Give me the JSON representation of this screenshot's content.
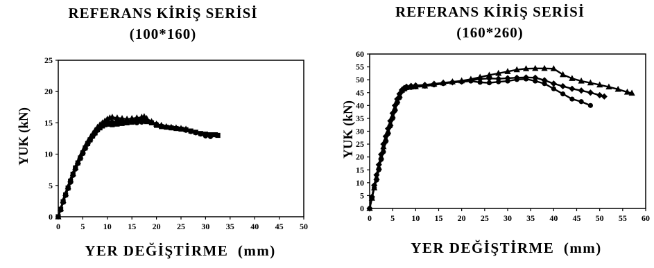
{
  "chart_data": [
    {
      "type": "scatter",
      "title": "REFERANS KİRİŞ SERİSİ",
      "subtitle": "(100*160)",
      "xlabel": "YER DEĞİŞTİRME  (mm)",
      "ylabel": "YUK (kN)",
      "xlim": [
        0,
        50
      ],
      "ylim": [
        0,
        25
      ],
      "xticks": [
        0,
        5,
        10,
        15,
        20,
        25,
        30,
        35,
        40,
        45,
        50
      ],
      "yticks": [
        0,
        5,
        10,
        15,
        20,
        25
      ],
      "grid": false,
      "legend": "none",
      "series": [
        {
          "marker": "square",
          "color": "#000000",
          "x": [
            0,
            0.5,
            1,
            1.5,
            2,
            2.5,
            3,
            3.5,
            4,
            4.5,
            5,
            5.5,
            6,
            6.5,
            7,
            7.5,
            8,
            8.5,
            9,
            9.5,
            10,
            10.5,
            11,
            12,
            13,
            14,
            15,
            16,
            17,
            18,
            19,
            20,
            21,
            22,
            23,
            24,
            25,
            26,
            27,
            28,
            29,
            30,
            31,
            32,
            32.5
          ],
          "y": [
            0,
            1.2,
            2.4,
            3.5,
            4.6,
            5.7,
            6.8,
            7.8,
            8.6,
            9.4,
            10.2,
            11,
            11.7,
            12.3,
            12.9,
            13.4,
            13.9,
            14.2,
            14.5,
            14.7,
            14.8,
            14.8,
            14.7,
            14.8,
            14.9,
            15,
            15.1,
            15.2,
            15.3,
            15.2,
            15,
            14.6,
            14.4,
            14.3,
            14.2,
            14.1,
            14,
            13.9,
            13.7,
            13.5,
            13.3,
            13.2,
            13.1,
            13.1,
            13
          ]
        },
        {
          "marker": "triangle",
          "color": "#000000",
          "x": [
            0,
            0.5,
            1,
            1.5,
            2,
            2.5,
            3,
            3.5,
            4,
            4.5,
            5,
            5.5,
            6,
            6.5,
            7,
            7.5,
            8,
            8.5,
            9,
            9.5,
            10,
            10.5,
            11,
            12,
            13,
            14,
            15,
            16,
            17,
            17.5,
            18,
            19,
            20,
            21,
            22,
            23,
            24,
            25,
            26
          ],
          "y": [
            0,
            1.3,
            2.6,
            3.7,
            4.8,
            5.9,
            6.9,
            7.9,
            8.8,
            9.7,
            10.5,
            11.3,
            12,
            12.6,
            13.2,
            13.8,
            14.3,
            14.7,
            15,
            15.3,
            15.6,
            15.8,
            15.9,
            15.8,
            15.7,
            15.6,
            15.7,
            15.8,
            15.9,
            16,
            15.7,
            15.2,
            14.8,
            14.6,
            14.4,
            14.3,
            14.2,
            14.1,
            14
          ]
        },
        {
          "marker": "circle",
          "color": "#000000",
          "x": [
            0,
            0.5,
            1,
            1.5,
            2,
            2.5,
            3,
            3.5,
            4,
            4.5,
            5,
            5.5,
            6,
            6.5,
            7,
            7.5,
            8,
            8.5,
            9,
            9.5,
            10,
            11,
            12,
            13,
            14,
            15,
            16,
            17,
            18,
            19,
            20,
            21,
            22,
            23,
            24,
            25,
            26,
            27,
            28,
            29,
            30,
            31
          ],
          "y": [
            0,
            1.1,
            2.3,
            3.4,
            4.5,
            5.5,
            6.6,
            7.6,
            8.5,
            9.3,
            10.1,
            10.9,
            11.6,
            12.2,
            12.8,
            13.3,
            13.8,
            14.2,
            14.5,
            14.8,
            15,
            15.1,
            15.2,
            15.3,
            15.2,
            15.1,
            15,
            15.1,
            15.3,
            15.1,
            14.8,
            14.5,
            14.3,
            14.2,
            14.1,
            14,
            13.8,
            13.6,
            13.4,
            13.2,
            12.9,
            12.8
          ]
        }
      ]
    },
    {
      "type": "scatter",
      "title": "REFERANS KİRİŞ SERİSİ",
      "subtitle": "(160*260)",
      "xlabel": "YER DEĞİŞTİRME  (mm)",
      "ylabel": "YUK (kN)",
      "xlim": [
        0,
        60
      ],
      "ylim": [
        0,
        60
      ],
      "xticks": [
        0,
        5,
        10,
        15,
        20,
        25,
        30,
        35,
        40,
        45,
        50,
        55,
        60
      ],
      "yticks": [
        0,
        5,
        10,
        15,
        20,
        25,
        30,
        35,
        40,
        45,
        50,
        55,
        60
      ],
      "grid": false,
      "legend": "none",
      "series": [
        {
          "marker": "triangle",
          "color": "#000000",
          "x": [
            0,
            0.5,
            1,
            1.5,
            2,
            2.5,
            3,
            3.5,
            4,
            4.5,
            5,
            5.5,
            6,
            6.5,
            7,
            7.5,
            8,
            9,
            10,
            12,
            14,
            16,
            18,
            20,
            22,
            24,
            26,
            28,
            30,
            32,
            34,
            36,
            38,
            40,
            42,
            44,
            46,
            48,
            50,
            52,
            54,
            56,
            57
          ],
          "y": [
            0,
            4,
            8,
            12,
            16,
            20,
            24,
            27,
            30,
            33,
            36,
            39,
            42,
            44,
            46,
            46.5,
            47,
            47.2,
            47.3,
            47.6,
            48.3,
            48.8,
            49.2,
            49.6,
            50.2,
            51,
            51.8,
            52.5,
            53.2,
            53.9,
            54.3,
            54.4,
            54.4,
            54.3,
            52,
            50.5,
            49.5,
            48.8,
            48,
            47.2,
            46.3,
            45.2,
            44.8
          ]
        },
        {
          "marker": "circle",
          "color": "#000000",
          "x": [
            0,
            0.5,
            1,
            1.5,
            2,
            2.5,
            3,
            3.5,
            4,
            4.5,
            5,
            5.5,
            6,
            6.5,
            7,
            7.5,
            8,
            9,
            10,
            12,
            14,
            16,
            18,
            20,
            22,
            24,
            26,
            28,
            30,
            32,
            34,
            36,
            38,
            40,
            42,
            44,
            46,
            48
          ],
          "y": [
            0,
            4,
            8,
            11,
            15,
            19,
            22,
            26,
            29,
            32,
            35,
            38,
            41,
            43,
            45.5,
            46.3,
            46.8,
            47,
            47.2,
            47.5,
            48,
            48.5,
            49,
            49.2,
            49.5,
            49,
            48.8,
            49.2,
            49.5,
            50.1,
            50.3,
            49.5,
            48.5,
            46.5,
            44.5,
            42.5,
            41.5,
            40
          ]
        },
        {
          "marker": "diamond",
          "color": "#000000",
          "x": [
            0,
            0.5,
            1,
            1.5,
            2,
            2.5,
            3,
            3.5,
            4,
            4.5,
            5,
            5.5,
            6,
            6.5,
            7,
            7.5,
            8,
            9,
            10,
            12,
            14,
            16,
            18,
            20,
            22,
            24,
            26,
            28,
            30,
            32,
            34,
            36,
            38,
            40,
            42,
            44,
            46,
            48,
            50,
            51
          ],
          "y": [
            0,
            4.5,
            9,
            13,
            17,
            21,
            25,
            28,
            31,
            34,
            37,
            40,
            42.5,
            44.5,
            46,
            46.8,
            47.3,
            47.6,
            47.8,
            48,
            48.4,
            48.8,
            49,
            49.3,
            49.8,
            50.3,
            50.5,
            50.4,
            50.6,
            50.8,
            50.9,
            50.8,
            49.8,
            48.5,
            47.5,
            46.5,
            45.8,
            45,
            44,
            43.5
          ]
        }
      ]
    }
  ]
}
